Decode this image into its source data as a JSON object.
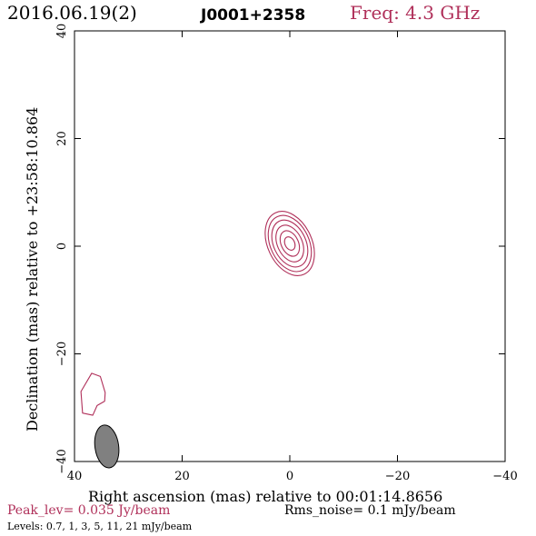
{
  "header": {
    "date": "2016.06.19(2)",
    "source": "J0001+2358",
    "freq": "Freq: 4.3 GHz"
  },
  "chart_data": {
    "type": "contour",
    "xlabel": "Right ascension (mas) relative to 00:01:14.8656",
    "ylabel": "Declination (mas) relative to +23:58:10.864",
    "xlim": [
      40,
      -40
    ],
    "ylim": [
      -40,
      40
    ],
    "x_ticks": [
      40,
      20,
      0,
      -20,
      -40
    ],
    "y_ticks": [
      -40,
      -20,
      0,
      20,
      40
    ],
    "x_tick_labels": [
      "40",
      "20",
      "0",
      "−20",
      "−40"
    ],
    "y_tick_labels": [
      "−40",
      "−20",
      "0",
      "20",
      "40"
    ],
    "contour_color": "#b0305a",
    "contour_levels_mJy_per_beam": [
      0.7,
      1,
      3,
      5,
      11,
      21
    ],
    "components": [
      {
        "name": "core",
        "center": [
          0.0,
          0.5
        ],
        "semi_minor_mas": [
          4.1,
          3.6,
          3.0,
          2.3,
          1.6,
          0.9
        ],
        "semi_major_mas": [
          6.3,
          5.5,
          4.6,
          3.6,
          2.5,
          1.3
        ],
        "pa_deg": 25
      },
      {
        "name": "feature",
        "polygon": [
          [
            38.5,
            -31
          ],
          [
            38.8,
            -27
          ],
          [
            36.8,
            -23.6
          ],
          [
            35.2,
            -24.2
          ],
          [
            34.3,
            -27.2
          ],
          [
            34.4,
            -28.8
          ],
          [
            35.8,
            -29.6
          ],
          [
            36.6,
            -31.4
          ]
        ]
      }
    ],
    "beam": {
      "center": [
        34.0,
        -37.2
      ],
      "minor_mas": 2.2,
      "major_mas": 4.0,
      "pa_deg": 8,
      "fill": "#808080"
    }
  },
  "footer": {
    "peak": "Peak_lev=  0.035 Jy/beam",
    "rms": "Rms_noise=  0.1 mJy/beam",
    "levels": "Levels: 0.7,   1,   3,   5,  11,  21 mJy/beam"
  }
}
